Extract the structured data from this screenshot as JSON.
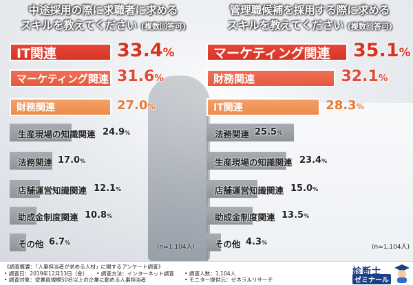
{
  "left": {
    "title_line1": "中途採用の際に求職者に求める",
    "title_line2": "スキルを教えてください",
    "title_sub": "(複数回答可)",
    "n_note": "(n=1,104人)"
  },
  "right": {
    "title_line1": "管理職候補を採用する際に求める",
    "title_line2": "スキルを教えてください",
    "title_sub": "(複数回答可)",
    "n_note": "(n=1,104人)"
  },
  "chart_data": [
    {
      "type": "bar",
      "orientation": "horizontal",
      "categories": [
        "IT関連",
        "マーケティング関連",
        "財務関連",
        "生産現場の知識関連",
        "法務関連",
        "店舗運営知識関連",
        "助成金制度関連",
        "その他"
      ],
      "values": [
        33.4,
        31.6,
        27.0,
        24.9,
        17.0,
        12.1,
        10.8,
        6.7
      ],
      "value_labels": [
        "33.4",
        "31.6",
        "27.0",
        "24.9",
        "17.0",
        "12.1",
        "10.8",
        "6.7"
      ],
      "unit": "%",
      "max": 35.1,
      "title": "中途採用の際に求職者に求めるスキルを教えてください(複数回答可)",
      "highlight_colors": [
        "#d6321f",
        "#e14a35",
        "#e8782f"
      ],
      "other_color": "#989ca2"
    },
    {
      "type": "bar",
      "orientation": "horizontal",
      "categories": [
        "マーケティング関連",
        "財務関連",
        "IT関連",
        "法務関連",
        "生産現場の知識関連",
        "店舗運営知識関連",
        "助成金制度関連",
        "その他"
      ],
      "values": [
        35.1,
        32.1,
        28.3,
        25.5,
        23.4,
        15.0,
        13.5,
        4.3
      ],
      "value_labels": [
        "35.1",
        "32.1",
        "28.3",
        "25.5",
        "23.4",
        "15.0",
        "13.5",
        "4.3"
      ],
      "unit": "%",
      "max": 35.1,
      "title": "管理職候補を採用する際に求めるスキルを教えてください(複数回答可)",
      "highlight_colors": [
        "#d6321f",
        "#e14a35",
        "#e8782f"
      ],
      "other_color": "#989ca2"
    }
  ],
  "footer": {
    "line1": "《調査概要：「人事担当者が求める人材」に関するアンケート調査》",
    "line2a": "• 調査日：2019年12月13日（金）",
    "line2b": "• 調査方法：インターネット調査",
    "line2c": "• 調査人数：1,104人",
    "line3a": "• 調査対象：従業員規模50名以上の企業に勤める人事担当者",
    "line3b": "• モニター提供元：ゼネラルリサーチ"
  },
  "logo": {
    "text1": "診断士",
    "text2": "ゼミナール"
  }
}
